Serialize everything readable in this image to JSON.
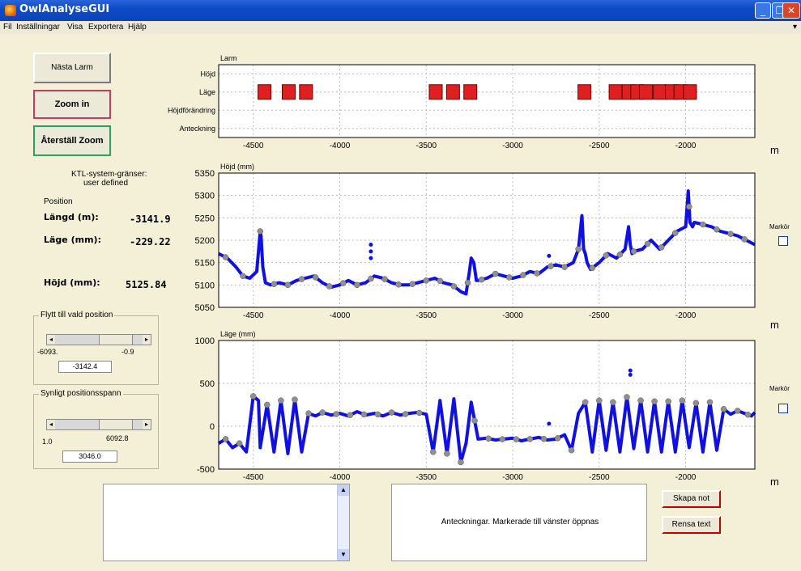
{
  "window": {
    "title": "OwlAnalyseGUI",
    "min": "_",
    "max": "❐",
    "close": "✕"
  },
  "menu": [
    "Fil",
    "Inställningar",
    "Visa",
    "Exportera",
    "Hjälp"
  ],
  "menu_overflow": "▾",
  "buttons": {
    "next_alarm": "Nästa Larm",
    "zoom_in": "Zoom in",
    "reset_zoom": "Återställ Zoom",
    "create_note": "Skapa not",
    "clear_text": "Rensa text"
  },
  "ktl": {
    "line1": "KTL-system-gränser:",
    "line2": "user defined"
  },
  "position": {
    "heading": "Position",
    "length_label": "Längd (m):",
    "length_value": "-3141.9",
    "lateral_label": "Läge (mm):",
    "lateral_value": "-229.22",
    "height_label": "Höjd (mm):",
    "height_value": "5125.84"
  },
  "move_group": {
    "title": "Flytt till vald position",
    "min": "-6093.",
    "max": "-0.9",
    "value": "-3142.4"
  },
  "span_group": {
    "title": "Synligt positionsspann",
    "min": "1.0",
    "max": "6092.8",
    "value": "3046.0"
  },
  "notes_hint": "Anteckningar. Markerade till vänster öppnas",
  "marker_label": "Markör",
  "unit_m": "m",
  "colors": {
    "series": "#1010e0",
    "alarm": "#e02020",
    "marker": "#909090"
  },
  "chart_data": [
    {
      "type": "scatter",
      "title": "Larm",
      "categories": [
        "Höjd",
        "Läge",
        "Höjdförändring",
        "Anteckning"
      ],
      "xlim": [
        -4700,
        -1600
      ],
      "xticks": [
        -4500,
        -4000,
        -3500,
        -3000,
        -2500,
        -2000
      ],
      "xunit": "m",
      "alarms": [
        {
          "category": "Läge",
          "x": -4435
        },
        {
          "category": "Läge",
          "x": -4295
        },
        {
          "category": "Läge",
          "x": -4195
        },
        {
          "category": "Läge",
          "x": -3445
        },
        {
          "category": "Läge",
          "x": -3345
        },
        {
          "category": "Läge",
          "x": -3245
        },
        {
          "category": "Läge",
          "x": -2585
        },
        {
          "category": "Läge",
          "x": -2405
        },
        {
          "category": "Läge",
          "x": -2330
        },
        {
          "category": "Läge",
          "x": -2280
        },
        {
          "category": "Läge",
          "x": -2230
        },
        {
          "category": "Läge",
          "x": -2150
        },
        {
          "category": "Läge",
          "x": -2080
        },
        {
          "category": "Läge",
          "x": -2030
        },
        {
          "category": "Läge",
          "x": -1975
        }
      ]
    },
    {
      "type": "line",
      "ylabel": "Höjd (mm)",
      "xlim": [
        -4700,
        -1600
      ],
      "ylim": [
        5050,
        5350
      ],
      "xticks": [
        -4500,
        -4000,
        -3500,
        -3000,
        -2500,
        -2000
      ],
      "yticks": [
        5050,
        5100,
        5150,
        5200,
        5250,
        5300,
        5350
      ],
      "xunit": "m",
      "series": [
        {
          "x": [
            -4700,
            -4650,
            -4600,
            -4560,
            -4520,
            -4480,
            -4460,
            -4455,
            -4445,
            -4430,
            -4400,
            -4350,
            -4300,
            -4250,
            -4200,
            -4150,
            -4100,
            -4050,
            -4000,
            -3950,
            -3900,
            -3850,
            -3800,
            -3750,
            -3700,
            -3650,
            -3600,
            -3550,
            -3500,
            -3450,
            -3400,
            -3350,
            -3300,
            -3270,
            -3250,
            -3240,
            -3225,
            -3210,
            -3200,
            -3150,
            -3100,
            -3050,
            -3000,
            -2950,
            -2900,
            -2850,
            -2800,
            -2750,
            -2700,
            -2650,
            -2620,
            -2600,
            -2590,
            -2580,
            -2570,
            -2550,
            -2500,
            -2450,
            -2400,
            -2350,
            -2330,
            -2320,
            -2310,
            -2300,
            -2250,
            -2200,
            -2150,
            -2100,
            -2050,
            -2000,
            -1985,
            -1975,
            -1960,
            -1950,
            -1900,
            -1850,
            -1800,
            -1750,
            -1700,
            -1650,
            -1600
          ],
          "y": [
            5170,
            5160,
            5140,
            5120,
            5115,
            5130,
            5220,
            5210,
            5140,
            5105,
            5100,
            5105,
            5100,
            5110,
            5115,
            5120,
            5105,
            5095,
            5100,
            5110,
            5100,
            5105,
            5120,
            5115,
            5105,
            5100,
            5100,
            5105,
            5110,
            5115,
            5105,
            5100,
            5085,
            5080,
            5130,
            5160,
            5150,
            5110,
            5110,
            5115,
            5125,
            5120,
            5115,
            5120,
            5130,
            5125,
            5140,
            5145,
            5140,
            5150,
            5180,
            5255,
            5180,
            5170,
            5150,
            5135,
            5150,
            5170,
            5160,
            5180,
            5230,
            5190,
            5170,
            5175,
            5180,
            5200,
            5180,
            5200,
            5220,
            5230,
            5310,
            5240,
            5230,
            5240,
            5235,
            5230,
            5220,
            5215,
            5210,
            5200,
            5190
          ]
        }
      ],
      "outliers": [
        {
          "x": -3820,
          "y": 5190
        },
        {
          "x": -3820,
          "y": 5175
        },
        {
          "x": -3820,
          "y": 5160
        },
        {
          "x": -2790,
          "y": 5165
        }
      ],
      "markers": [
        -4660,
        -4560,
        -4460,
        -4380,
        -4300,
        -4220,
        -4140,
        -4060,
        -3980,
        -3900,
        -3820,
        -3740,
        -3660,
        -3580,
        -3500,
        -3420,
        -3340,
        -3260,
        -3180,
        -3100,
        -3020,
        -2940,
        -2860,
        -2780,
        -2700,
        -2620,
        -2540,
        -2460,
        -2380,
        -2300,
        -2220,
        -2140,
        -2060,
        -1980,
        -1900,
        -1820,
        -1740,
        -1660
      ]
    },
    {
      "type": "line",
      "ylabel": "Läge (mm)",
      "xlim": [
        -4700,
        -1600
      ],
      "ylim": [
        -500,
        1000
      ],
      "xticks": [
        -4500,
        -4000,
        -3500,
        -3000,
        -2500,
        -2000
      ],
      "yticks": [
        -500,
        0,
        500,
        1000
      ],
      "xunit": "m",
      "series": [
        {
          "x": [
            -4700,
            -4660,
            -4620,
            -4580,
            -4540,
            -4500,
            -4470,
            -4460,
            -4420,
            -4380,
            -4340,
            -4300,
            -4260,
            -4220,
            -4180,
            -4140,
            -4100,
            -4050,
            -4000,
            -3950,
            -3900,
            -3850,
            -3800,
            -3750,
            -3700,
            -3650,
            -3600,
            -3550,
            -3500,
            -3460,
            -3420,
            -3380,
            -3340,
            -3300,
            -3270,
            -3240,
            -3200,
            -3150,
            -3100,
            -3050,
            -3000,
            -2950,
            -2900,
            -2850,
            -2800,
            -2750,
            -2700,
            -2660,
            -2620,
            -2580,
            -2540,
            -2500,
            -2460,
            -2420,
            -2380,
            -2340,
            -2300,
            -2260,
            -2220,
            -2180,
            -2140,
            -2100,
            -2060,
            -2020,
            -1980,
            -1940,
            -1900,
            -1860,
            -1820,
            -1780,
            -1740,
            -1700,
            -1660,
            -1620,
            -1600
          ],
          "y": [
            -200,
            -150,
            -250,
            -200,
            -300,
            350,
            300,
            -250,
            250,
            -300,
            300,
            -320,
            310,
            -300,
            150,
            120,
            160,
            130,
            150,
            120,
            170,
            130,
            150,
            120,
            160,
            130,
            150,
            160,
            140,
            -300,
            300,
            -320,
            320,
            -420,
            -200,
            280,
            -150,
            -140,
            -160,
            -150,
            -140,
            -170,
            -150,
            -130,
            -160,
            -150,
            -100,
            -280,
            150,
            280,
            -300,
            300,
            -280,
            280,
            -300,
            340,
            -260,
            300,
            -300,
            290,
            -300,
            290,
            -300,
            300,
            -250,
            270,
            -300,
            280,
            -280,
            200,
            140,
            180,
            150,
            120,
            160
          ]
        }
      ],
      "outliers": [
        {
          "x": -2320,
          "y": 600
        },
        {
          "x": -2320,
          "y": 650
        },
        {
          "x": -2790,
          "y": 30
        }
      ],
      "markers": [
        -4660,
        -4580,
        -4500,
        -4420,
        -4340,
        -4260,
        -4180,
        -4100,
        -4020,
        -3940,
        -3860,
        -3780,
        -3700,
        -3620,
        -3540,
        -3460,
        -3380,
        -3300,
        -3220,
        -3140,
        -3060,
        -2980,
        -2900,
        -2820,
        -2740,
        -2660,
        -2580,
        -2500,
        -2420,
        -2340,
        -2260,
        -2180,
        -2100,
        -2020,
        -1940,
        -1860,
        -1780,
        -1700,
        -1640
      ]
    }
  ]
}
